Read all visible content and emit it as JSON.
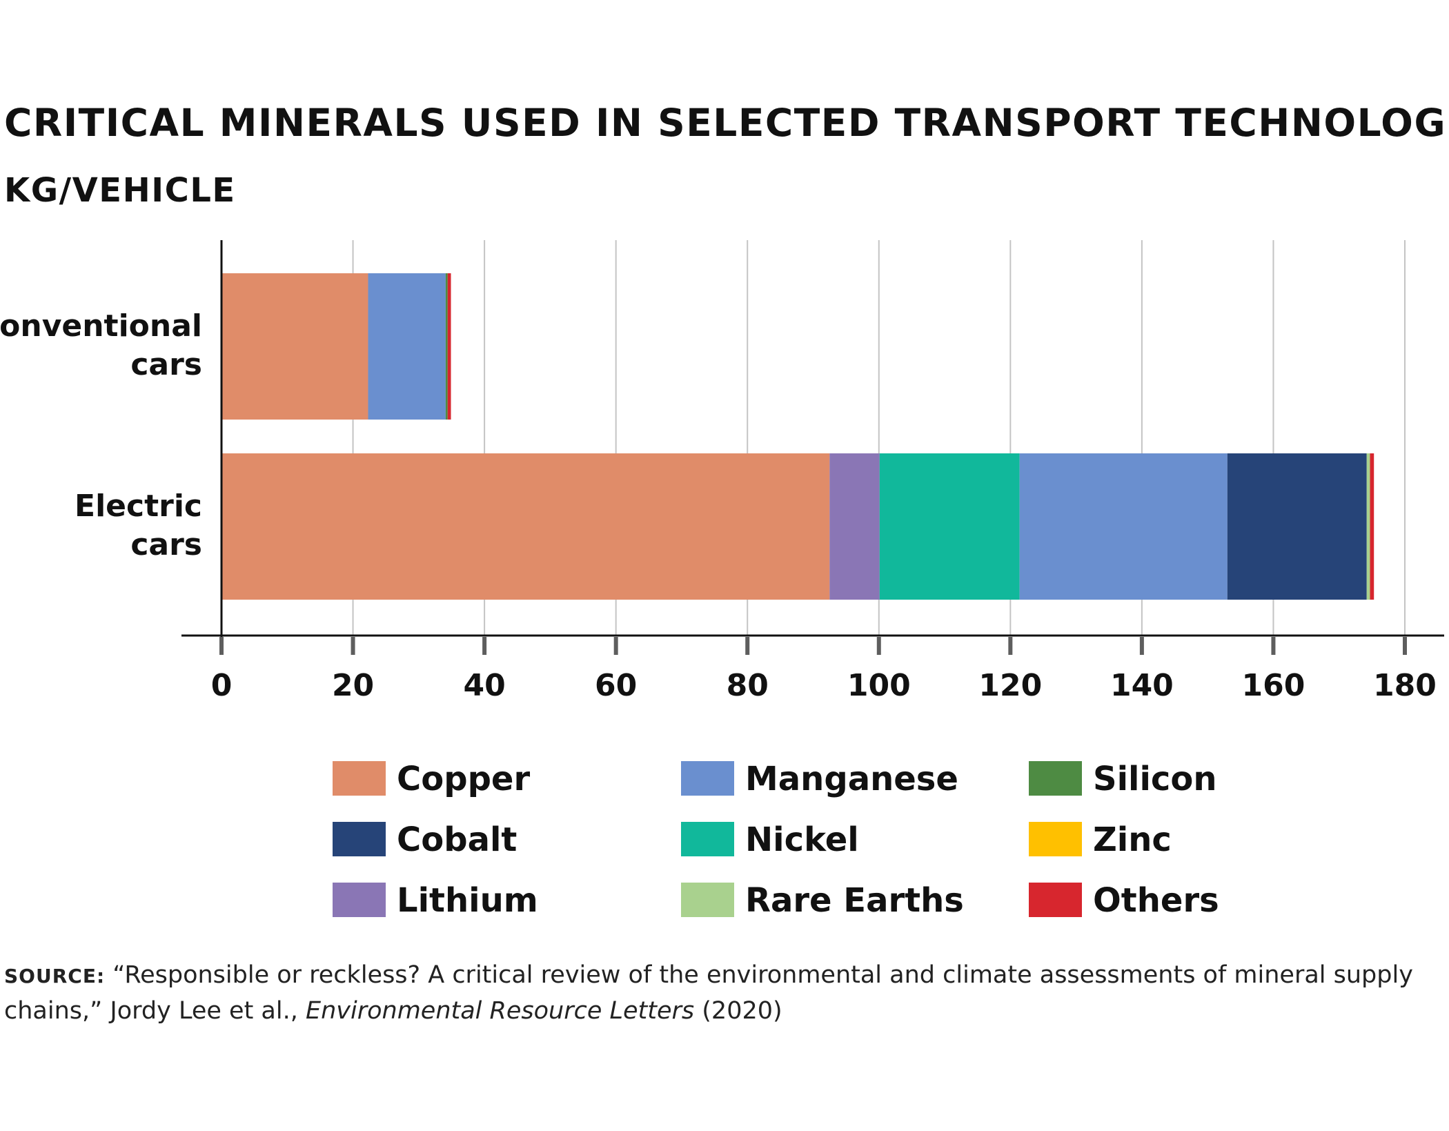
{
  "title": "CRITICAL MINERALS USED IN SELECTED TRANSPORT TECHNOLOGIES",
  "subtitle": "KG/VEHICLE",
  "source": {
    "label": "SOURCE:",
    "text_before": "“Responsible or reckless? A critical review of the environmental and climate assessments of mineral supply chains,” Jordy Lee et al., ",
    "journal": "Environmental Resource Letters",
    "text_after": " (2020)"
  },
  "chart_data": {
    "type": "bar",
    "orientation": "horizontal",
    "stacked": true,
    "categories": [
      "Conventional cars",
      "Electric cars"
    ],
    "category_label_lines": [
      [
        "Conventional",
        "cars"
      ],
      [
        "Electric",
        "cars"
      ]
    ],
    "series": [
      {
        "name": "Copper",
        "color": "#E08C69",
        "values": [
          22.3,
          92.5
        ]
      },
      {
        "name": "Lithium",
        "color": "#8A76B5",
        "values": [
          0,
          7.6
        ]
      },
      {
        "name": "Nickel",
        "color": "#11B89B",
        "values": [
          0,
          21.3
        ]
      },
      {
        "name": "Manganese",
        "color": "#6A8FCF",
        "values": [
          11.8,
          31.6
        ]
      },
      {
        "name": "Cobalt",
        "color": "#264478",
        "values": [
          0,
          21.2
        ]
      },
      {
        "name": "Rare Earths",
        "color": "#A9D18E",
        "values": [
          0,
          0.5
        ]
      },
      {
        "name": "Silicon",
        "color": "#4E8B43",
        "values": [
          0.3,
          0
        ]
      },
      {
        "name": "Zinc",
        "color": "#FFC000",
        "values": [
          0,
          0
        ]
      },
      {
        "name": "Others",
        "color": "#D7262E",
        "values": [
          0.5,
          0.6
        ]
      }
    ],
    "xlim": [
      0,
      180
    ],
    "xticks": [
      0,
      20,
      40,
      60,
      80,
      100,
      120,
      140,
      160,
      180
    ],
    "xlabel": "",
    "ylabel": "",
    "grid": "vertical",
    "legend": {
      "placement": "bottom",
      "order": [
        "Copper",
        "Cobalt",
        "Lithium",
        "Manganese",
        "Nickel",
        "Rare Earths",
        "Silicon",
        "Zinc",
        "Others"
      ]
    }
  }
}
